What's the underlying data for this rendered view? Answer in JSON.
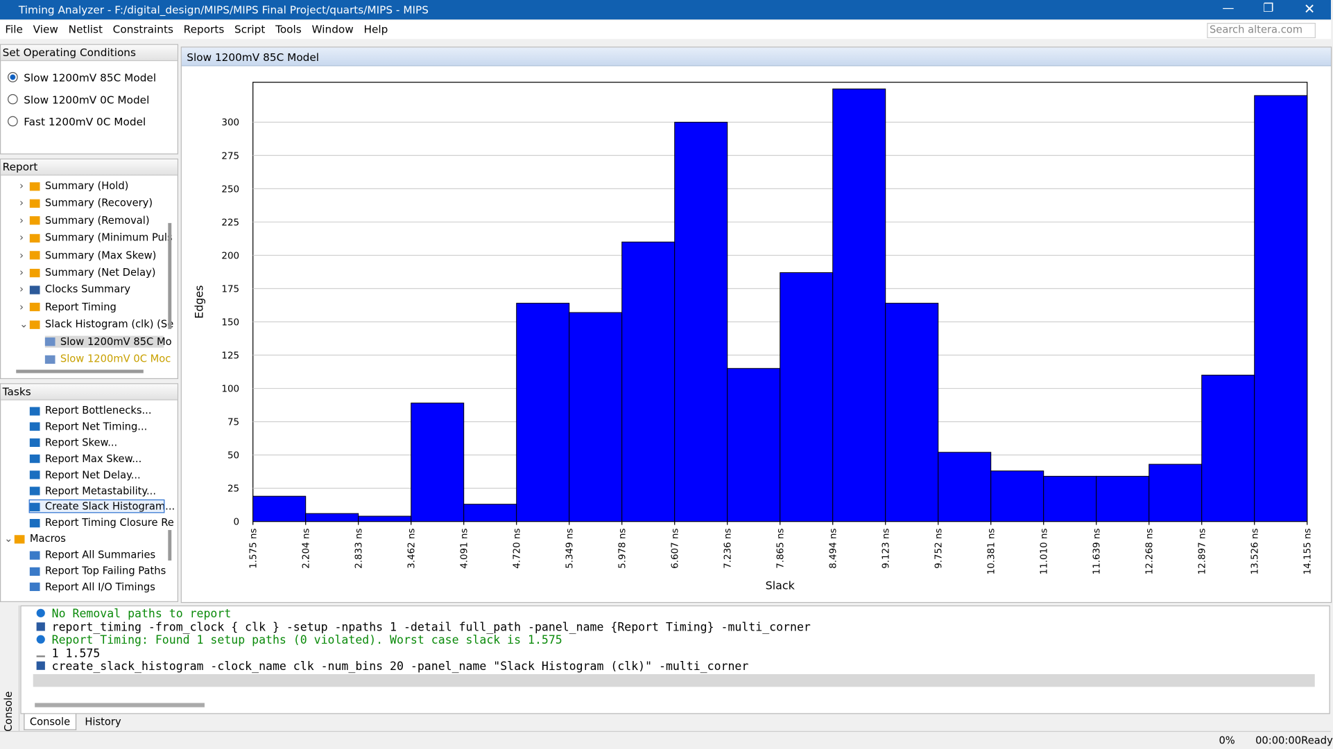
{
  "window": {
    "title": "Timing Analyzer - F:/digital_design/MIPS/MIPS Final Project/quarts/MIPS - MIPS"
  },
  "menu": [
    "File",
    "View",
    "Netlist",
    "Constraints",
    "Reports",
    "Script",
    "Tools",
    "Window",
    "Help"
  ],
  "search_placeholder": "Search altera.com",
  "operating_conditions": {
    "title": "Set Operating Conditions",
    "options": [
      "Slow 1200mV 85C Model",
      "Slow 1200mV 0C Model",
      "Fast 1200mV 0C Model"
    ],
    "selected": 0
  },
  "report": {
    "title": "Report",
    "items": [
      "Summary (Hold)",
      "Summary (Recovery)",
      "Summary (Removal)",
      "Summary (Minimum Puls",
      "Summary (Max Skew)",
      "Summary (Net Delay)",
      "Clocks Summary",
      "Report Timing",
      "Slack Histogram (clk) (Se",
      "Slow 1200mV 85C Mo",
      "Slow 1200mV 0C Moc"
    ]
  },
  "tasks": {
    "title": "Tasks",
    "items": [
      "Report Bottlenecks...",
      "Report Net Timing...",
      "Report Skew...",
      "Report Max Skew...",
      "Report Net Delay...",
      "Report Metastability...",
      "Create Slack Histogram...",
      "Report Timing Closure Re"
    ],
    "macros_label": "Macros",
    "macros": [
      "Report All Summaries",
      "Report Top Failing Paths",
      "Report All I/O Timings"
    ]
  },
  "chart_panel_title": "Slow 1200mV 85C Model",
  "chart_data": {
    "type": "histogram",
    "xlabel": "Slack",
    "ylabel": "Edges",
    "color": "#0000ff",
    "bins": [
      1.575,
      2.204,
      2.833,
      3.462,
      4.091,
      4.72,
      5.349,
      5.978,
      6.607,
      7.236,
      7.865,
      8.494,
      9.123,
      9.752,
      10.381,
      11.01,
      11.639,
      12.268,
      12.897,
      13.526,
      14.155
    ],
    "values": [
      19,
      6,
      4,
      89,
      13,
      164,
      157,
      210,
      300,
      115,
      187,
      325,
      164,
      52,
      38,
      34,
      34,
      43,
      110,
      320
    ],
    "xlim": [
      1.575,
      14.155
    ],
    "xticks": [
      {
        "value": 1.575,
        "label": "1.575 ns"
      },
      {
        "value": 2.204,
        "label": "2.204 ns"
      },
      {
        "value": 2.833,
        "label": "2.833 ns"
      },
      {
        "value": 3.462,
        "label": "3.462 ns"
      },
      {
        "value": 4.091,
        "label": "4.091 ns"
      },
      {
        "value": 4.72,
        "label": "4.720 ns"
      },
      {
        "value": 5.349,
        "label": "5.349 ns"
      },
      {
        "value": 5.978,
        "label": "5.978 ns"
      },
      {
        "value": 6.607,
        "label": "6.607 ns"
      },
      {
        "value": 7.236,
        "label": "7.236 ns"
      },
      {
        "value": 7.865,
        "label": "7.865 ns"
      },
      {
        "value": 8.494,
        "label": "8.494 ns"
      },
      {
        "value": 9.123,
        "label": "9.123 ns"
      },
      {
        "value": 9.752,
        "label": "9.752 ns"
      },
      {
        "value": 10.381,
        "label": "10.381 ns"
      },
      {
        "value": 11.01,
        "label": "11.010 ns"
      },
      {
        "value": 11.639,
        "label": "11.639 ns"
      },
      {
        "value": 12.268,
        "label": "12.268 ns"
      },
      {
        "value": 12.897,
        "label": "12.897 ns"
      },
      {
        "value": 13.526,
        "label": "13.526 ns"
      },
      {
        "value": 14.155,
        "label": "14.155 ns"
      }
    ],
    "ylim": [
      0,
      330
    ],
    "yticks": [
      0,
      25,
      50,
      75,
      100,
      125,
      150,
      175,
      200,
      225,
      250,
      275,
      300
    ],
    "grid": true
  },
  "console": {
    "lines": [
      {
        "kind": "info",
        "text": "No Removal paths to report"
      },
      {
        "kind": "tcl",
        "text": "report_timing -from_clock { clk } -setup -npaths 1 -detail full_path -panel_name {Report Timing} -multi_corner"
      },
      {
        "kind": "info",
        "text": "Report Timing: Found 1 setup paths (0 violated).  Worst case slack is 1.575"
      },
      {
        "kind": "return",
        "text": "1 1.575"
      },
      {
        "kind": "tcl",
        "text": "create_slack_histogram -clock_name clk -num_bins 20 -panel_name \"Slack Histogram (clk)\" -multi_corner"
      }
    ],
    "side_label": "Console",
    "tabs": [
      "Console",
      "History"
    ]
  },
  "status": {
    "progress": "0%",
    "time": "00:00:00",
    "state": "Ready"
  }
}
